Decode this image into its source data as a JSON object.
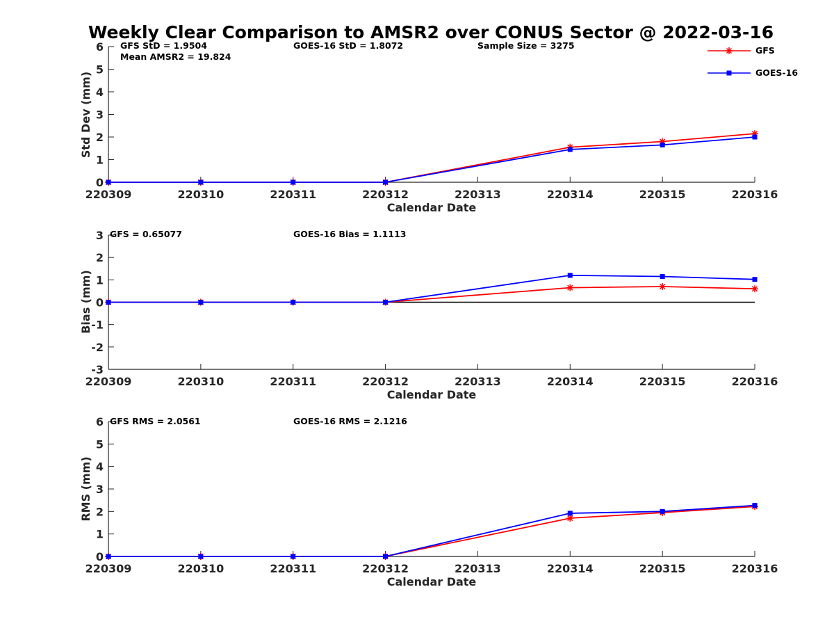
{
  "title": "Weekly Clear Comparison to AMSR2 over CONUS Sector @ 2022-03-16",
  "legend": {
    "placement": "top-right",
    "entries": [
      {
        "name": "GFS",
        "color": "#ff0000",
        "marker": "asterisk"
      },
      {
        "name": "GOES-16",
        "color": "#0000ff",
        "marker": "square"
      }
    ]
  },
  "chart_data": [
    {
      "type": "line",
      "ylabel": "Std Dev (mm)",
      "xlabel": "Calendar Date",
      "ylim": [
        0,
        6
      ],
      "yticks": [
        "0",
        "1",
        "2",
        "3",
        "4",
        "5",
        "6"
      ],
      "categories": [
        "220309",
        "220310",
        "220311",
        "220312",
        "220313",
        "220314",
        "220315",
        "220316"
      ],
      "annotations": [
        "GFS StD = 1.9504",
        "Mean AMSR2 = 19.824",
        "GOES-16 StD = 1.8072",
        "Sample Size = 3275"
      ],
      "zero_line": false,
      "series": [
        {
          "name": "GFS",
          "color": "#ff0000",
          "marker": "asterisk",
          "x": [
            "220309",
            "220310",
            "220311",
            "220312",
            "220314",
            "220315",
            "220316"
          ],
          "values": [
            0,
            0,
            0,
            0,
            1.55,
            1.8,
            2.15
          ]
        },
        {
          "name": "GOES-16",
          "color": "#0000ff",
          "marker": "square",
          "x": [
            "220309",
            "220310",
            "220311",
            "220312",
            "220314",
            "220315",
            "220316"
          ],
          "values": [
            0,
            0,
            0,
            0,
            1.45,
            1.65,
            2.0
          ]
        }
      ]
    },
    {
      "type": "line",
      "ylabel": "Bias (mm)",
      "xlabel": "Calendar Date",
      "ylim": [
        -3,
        3
      ],
      "yticks": [
        "-3",
        "-2",
        "-1",
        "0",
        "1",
        "2",
        "3"
      ],
      "categories": [
        "220309",
        "220310",
        "220311",
        "220312",
        "220313",
        "220314",
        "220315",
        "220316"
      ],
      "annotations": [
        "GFS = 0.65077",
        "GOES-16 Bias  = 1.1113"
      ],
      "zero_line": true,
      "series": [
        {
          "name": "GFS",
          "color": "#ff0000",
          "marker": "asterisk",
          "x": [
            "220309",
            "220310",
            "220311",
            "220312",
            "220314",
            "220315",
            "220316"
          ],
          "values": [
            0,
            0,
            0,
            0,
            0.65,
            0.7,
            0.6
          ]
        },
        {
          "name": "GOES-16",
          "color": "#0000ff",
          "marker": "square",
          "x": [
            "220309",
            "220310",
            "220311",
            "220312",
            "220314",
            "220315",
            "220316"
          ],
          "values": [
            0,
            0,
            0,
            0,
            1.2,
            1.15,
            1.02
          ]
        }
      ]
    },
    {
      "type": "line",
      "ylabel": "RMS (mm)",
      "xlabel": "Calendar Date",
      "ylim": [
        0,
        6
      ],
      "yticks": [
        "0",
        "1",
        "2",
        "3",
        "4",
        "5",
        "6"
      ],
      "categories": [
        "220309",
        "220310",
        "220311",
        "220312",
        "220313",
        "220314",
        "220315",
        "220316"
      ],
      "annotations": [
        "GFS RMS = 2.0561",
        "GOES-16 RMS = 2.1216"
      ],
      "zero_line": false,
      "series": [
        {
          "name": "GFS",
          "color": "#ff0000",
          "marker": "asterisk",
          "x": [
            "220309",
            "220310",
            "220311",
            "220312",
            "220314",
            "220315",
            "220316"
          ],
          "values": [
            0,
            0,
            0,
            0,
            1.7,
            1.95,
            2.22
          ]
        },
        {
          "name": "GOES-16",
          "color": "#0000ff",
          "marker": "square",
          "x": [
            "220309",
            "220310",
            "220311",
            "220312",
            "220314",
            "220315",
            "220316"
          ],
          "values": [
            0,
            0,
            0,
            0,
            1.92,
            2.0,
            2.27
          ]
        }
      ]
    }
  ]
}
